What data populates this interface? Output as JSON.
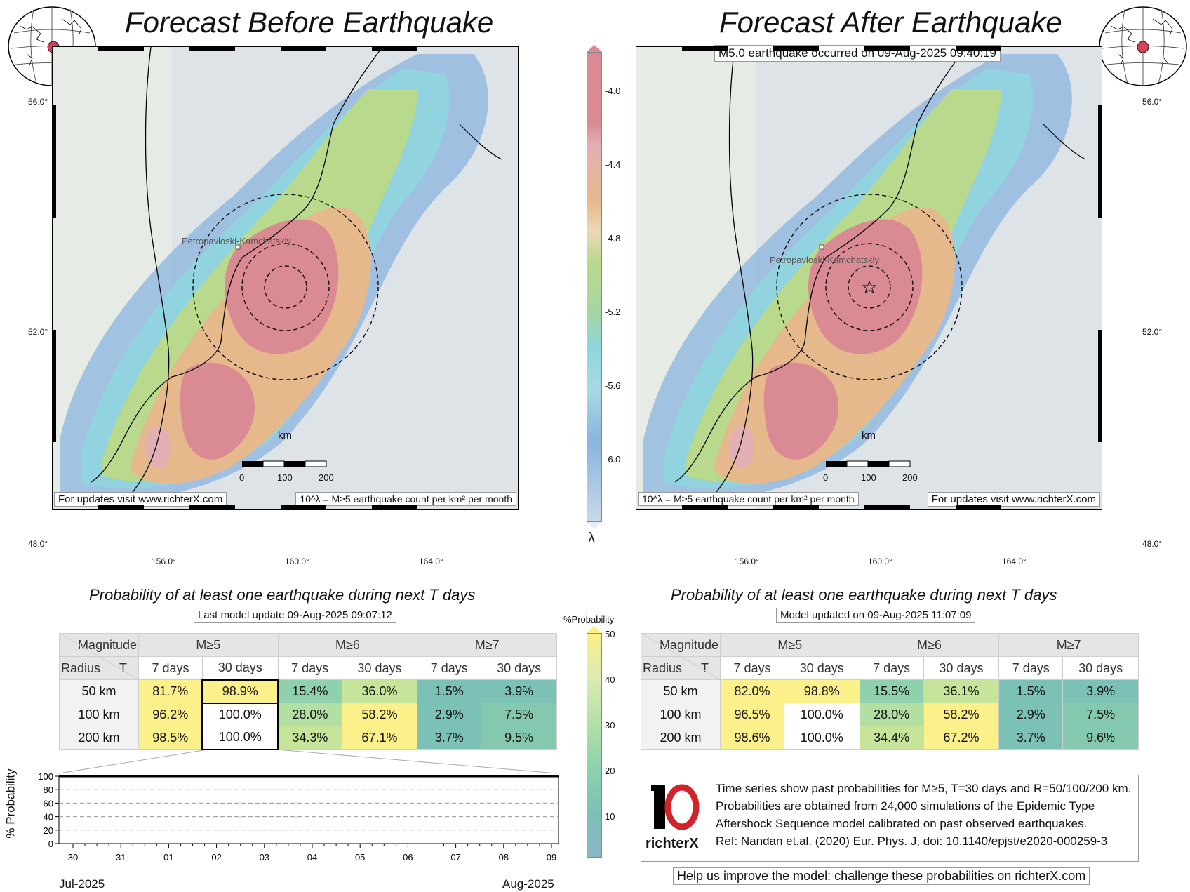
{
  "left_panel": {
    "title": "Forecast Before Earthquake",
    "city": "Petropavloski-Kamchatskiy",
    "scale_unit": "km",
    "scale_ticks": [
      "0",
      "100",
      "200"
    ],
    "lat_labels": [
      "56.0°",
      "52.0°",
      "48.0°"
    ],
    "lon_labels": [
      "156.0°",
      "160.0°",
      "164.0°"
    ],
    "footer_url": "For updates visit www.richterX.com",
    "footer_units": "10^λ = M≥5 earthquake count per km² per month"
  },
  "right_panel": {
    "title": "Forecast After Earthquake",
    "event": "M5.0 earthquake occurred on 09-Aug-2025 09:40:19",
    "city": "Petropavloski-Kamchatskiy",
    "scale_unit": "km",
    "scale_ticks": [
      "0",
      "100",
      "200"
    ],
    "lat_labels": [
      "56.0°",
      "52.0°",
      "48.0°"
    ],
    "lon_labels": [
      "156.0°",
      "160.0°",
      "164.0°"
    ],
    "footer_url": "For updates visit www.richterX.com",
    "footer_units": "10^λ = M≥5 earthquake count per km² per month"
  },
  "lambda_colorbar": {
    "symbol": "λ",
    "ticks": [
      "-4.0",
      "-4.4",
      "-4.8",
      "-5.2",
      "-5.6",
      "-6.0"
    ]
  },
  "prob_colorbar": {
    "title": "%Probability",
    "ticks": [
      "50",
      "40",
      "30",
      "20",
      "10"
    ]
  },
  "left_table": {
    "heading": "Probability of at least one earthquake during next T days",
    "update": "Last model update 09-Aug-2025 09:07:12",
    "corner_top": "Magnitude",
    "corner_left": "Radius",
    "corner_t": "T",
    "mags": [
      "M≥5",
      "M≥6",
      "M≥7"
    ],
    "periods": [
      "7 days",
      "30 days",
      "7 days",
      "30 days",
      "7 days",
      "30 days"
    ],
    "rows": [
      {
        "radius": "50 km",
        "values": [
          "81.7%",
          "98.9%",
          "15.4%",
          "36.0%",
          "1.5%",
          "3.9%"
        ]
      },
      {
        "radius": "100 km",
        "values": [
          "96.2%",
          "100.0%",
          "28.0%",
          "58.2%",
          "2.9%",
          "7.5%"
        ]
      },
      {
        "radius": "200 km",
        "values": [
          "98.5%",
          "100.0%",
          "34.3%",
          "67.1%",
          "3.7%",
          "9.5%"
        ]
      }
    ]
  },
  "right_table": {
    "heading": "Probability of at least one earthquake during next T days",
    "update": "Model updated on 09-Aug-2025 11:07:09",
    "corner_top": "Magnitude",
    "corner_left": "Radius",
    "corner_t": "T",
    "mags": [
      "M≥5",
      "M≥6",
      "M≥7"
    ],
    "periods": [
      "7 days",
      "30 days",
      "7 days",
      "30 days",
      "7 days",
      "30 days"
    ],
    "rows": [
      {
        "radius": "50 km",
        "values": [
          "82.0%",
          "98.8%",
          "15.5%",
          "36.1%",
          "1.5%",
          "3.9%"
        ]
      },
      {
        "radius": "100 km",
        "values": [
          "96.5%",
          "100.0%",
          "28.0%",
          "58.2%",
          "2.9%",
          "7.5%"
        ]
      },
      {
        "radius": "200 km",
        "values": [
          "98.6%",
          "100.0%",
          "34.4%",
          "67.2%",
          "3.7%",
          "9.6%"
        ]
      }
    ]
  },
  "chart_data": {
    "type": "line",
    "ylabel": "% Probability",
    "ylim": [
      0,
      100
    ],
    "yticks": [
      "100",
      "80",
      "60",
      "40",
      "20",
      "0"
    ],
    "x": [
      "30",
      "31",
      "01",
      "02",
      "03",
      "04",
      "05",
      "06",
      "07",
      "08",
      "09"
    ],
    "x_month_labels": [
      "Jul-2025",
      "Aug-2025"
    ],
    "series": [
      {
        "values": [
          100,
          100,
          100,
          100,
          100,
          100,
          100,
          100,
          100,
          100,
          100
        ]
      }
    ]
  },
  "info": {
    "lines": [
      "Time series show past probabilities for M≥5, T=30 days and R=50/100/200 km.",
      "Probabilities are obtained from 24,000 simulations of the Epidemic Type",
      "Aftershock Sequence model calibrated on past observed earthquakes.",
      "Ref: Nandan et.al. (2020) Eur. Phys. J, doi: 10.1140/epjst/e2020-000259-3"
    ],
    "logo_text": "richterX",
    "footer": "Help us improve the model: challenge these probabilities on richterX.com"
  },
  "colors": {
    "high": "#d98a92",
    "mid": "#e6b98c",
    "green": "#b9d98c",
    "cyan": "#8fd6df",
    "blue": "#8ab4de",
    "yellow_cell": "#fbf08a",
    "teal_cell": "#6fbcb4"
  }
}
